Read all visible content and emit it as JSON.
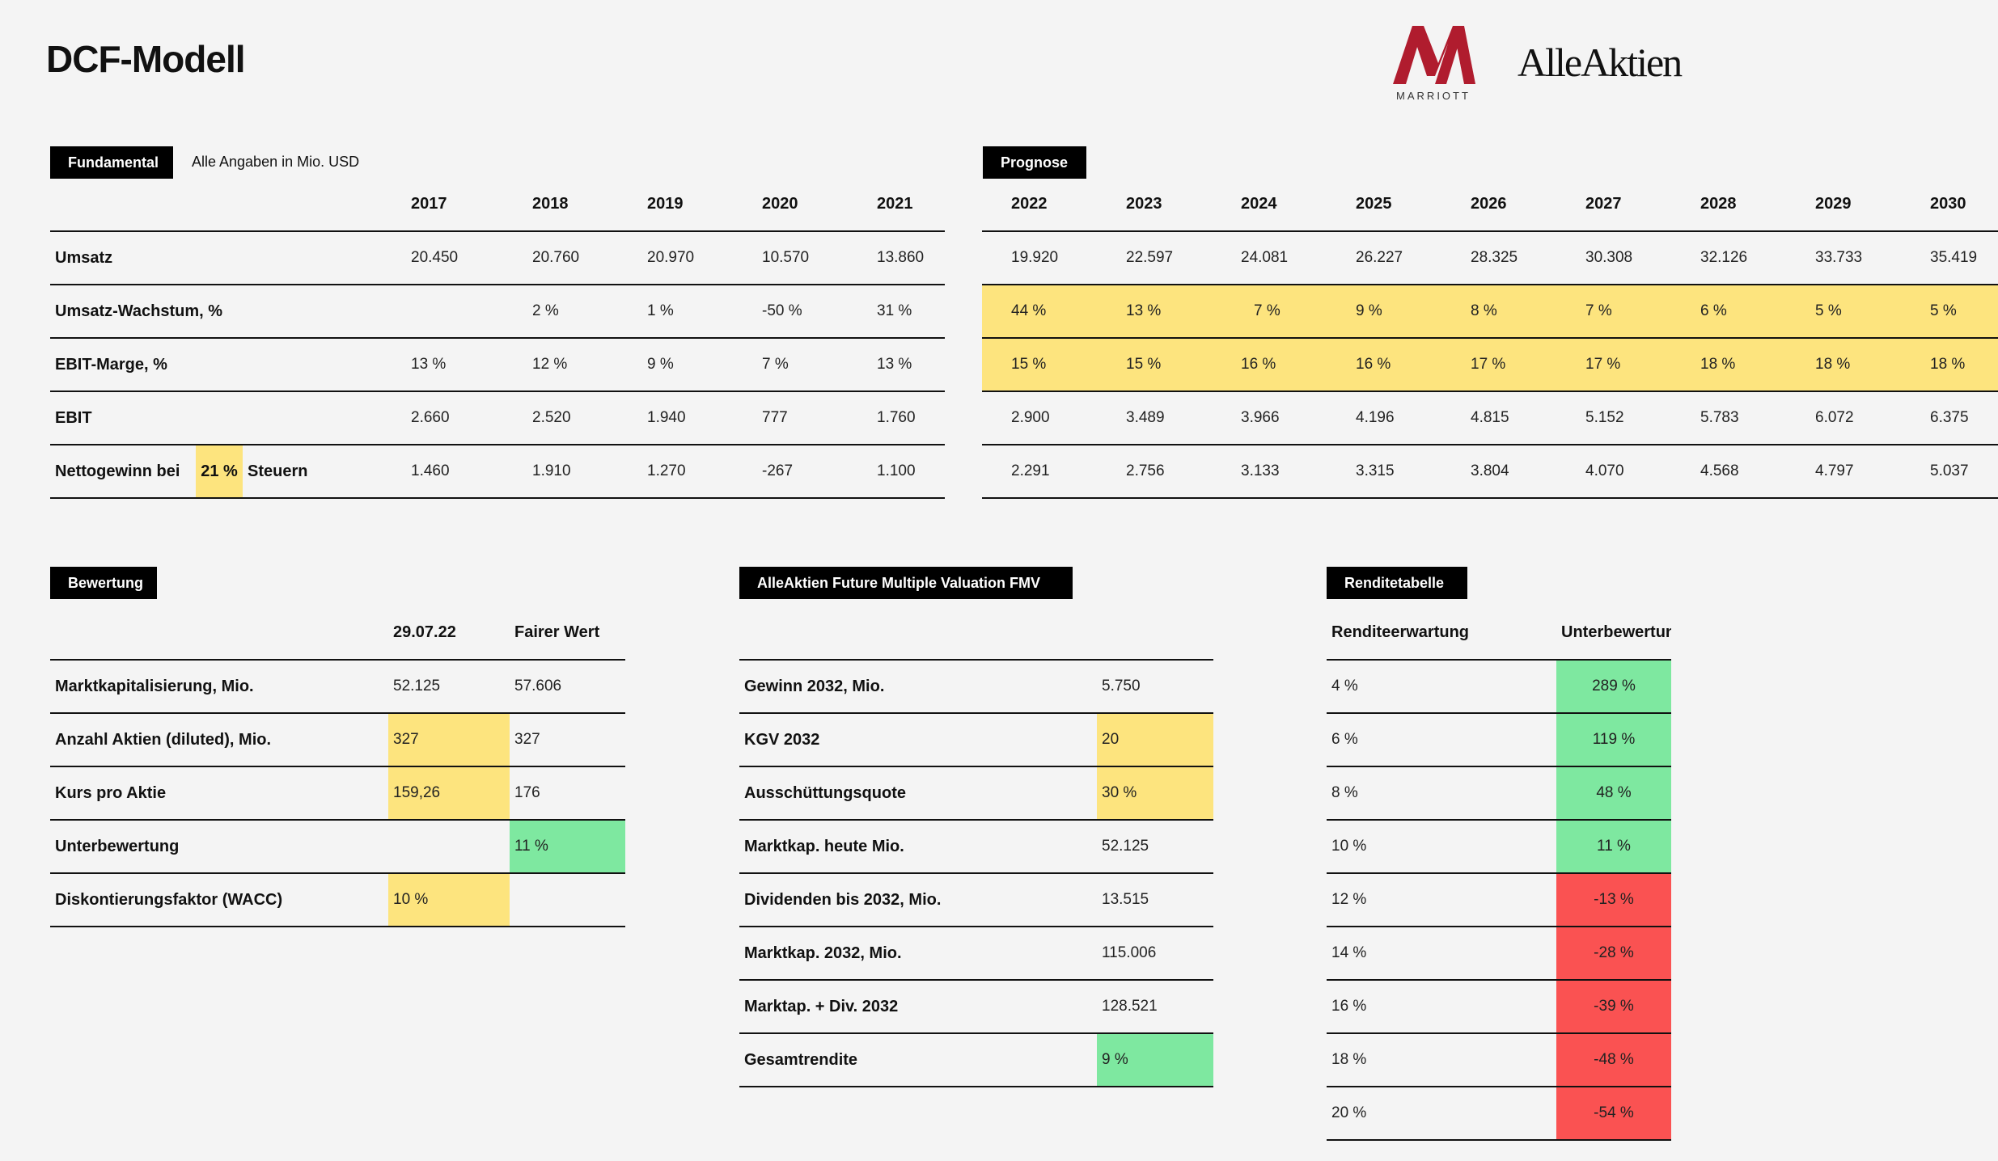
{
  "page": {
    "title": "DCF-Modell",
    "logo_marriott": "MARRIOTT",
    "logo_alleaktien": "AlleAktien"
  },
  "fundamental": {
    "tag": "Fundamental",
    "note": "Alle Angaben in Mio. USD",
    "years": [
      "2017",
      "2018",
      "2019",
      "2020",
      "2021"
    ],
    "rows": [
      {
        "label": "Umsatz",
        "values": [
          "20.450",
          "20.760",
          "20.970",
          "10.570",
          "13.860"
        ]
      },
      {
        "label": "Umsatz-Wachstum, %",
        "values": [
          "",
          "2 %",
          "1 %",
          "-50 %",
          "31 %"
        ]
      },
      {
        "label": "EBIT-Marge, %",
        "values": [
          "13 %",
          "12 %",
          "9 %",
          "7 %",
          "13 %"
        ]
      },
      {
        "label": "EBIT",
        "values": [
          "2.660",
          "2.520",
          "1.940",
          "777",
          "1.760"
        ]
      },
      {
        "label": "Nettogewinn bei",
        "values": [
          "1.460",
          "1.910",
          "1.270",
          "-267",
          "1.100"
        ]
      }
    ],
    "tax_rate": "21 %",
    "tax_suffix": "Steuern"
  },
  "prognose": {
    "tag": "Prognose",
    "years": [
      "2022",
      "2023",
      "2024",
      "2025",
      "2026",
      "2027",
      "2028",
      "2029",
      "2030"
    ],
    "rows": [
      [
        "19.920",
        "22.597",
        "24.081",
        "26.227",
        "28.325",
        "30.308",
        "32.126",
        "33.733",
        "35.419"
      ],
      [
        "44 %",
        "13 %",
        "7 %",
        "9 %",
        "8 %",
        "7 %",
        "6 %",
        "5 %",
        "5 %"
      ],
      [
        "15 %",
        "15 %",
        "16 %",
        "16 %",
        "17 %",
        "17 %",
        "18 %",
        "18 %",
        "18 %"
      ],
      [
        "2.900",
        "3.489",
        "3.966",
        "4.196",
        "4.815",
        "5.152",
        "5.783",
        "6.072",
        "6.375"
      ],
      [
        "2.291",
        "2.756",
        "3.133",
        "3.315",
        "3.804",
        "4.070",
        "4.568",
        "4.797",
        "5.037"
      ]
    ]
  },
  "bewertung": {
    "tag": "Bewertung",
    "col1": "29.07.22",
    "col2": "Fairer Wert",
    "rows": [
      {
        "label": "Marktkapitalisierung, Mio.",
        "v1": "52.125",
        "v2": "57.606"
      },
      {
        "label": "Anzahl Aktien (diluted), Mio.",
        "v1": "327",
        "v2": "327"
      },
      {
        "label": "Kurs pro Aktie",
        "v1": "159,26",
        "v2": "176"
      },
      {
        "label": "Unterbewertung",
        "v1": "",
        "v2": "11 %"
      },
      {
        "label": "Diskontierungsfaktor (WACC)",
        "v1": "10 %",
        "v2": ""
      }
    ]
  },
  "fmv": {
    "tag": "AlleAktien Future Multiple Valuation FMV",
    "rows": [
      {
        "label": "Gewinn 2032, Mio.",
        "value": "5.750"
      },
      {
        "label": "KGV 2032",
        "value": "20"
      },
      {
        "label": "Ausschüttungsquote",
        "value": "30 %"
      },
      {
        "label": "Marktkap. heute Mio.",
        "value": "52.125"
      },
      {
        "label": "Dividenden bis 2032, Mio.",
        "value": "13.515"
      },
      {
        "label": "Marktkap. 2032, Mio.",
        "value": "115.006"
      },
      {
        "label": "Marktap. + Div. 2032",
        "value": "128.521"
      },
      {
        "label": "Gesamtrendite",
        "value": "9 %"
      }
    ]
  },
  "rendite": {
    "tag": "Renditetabelle",
    "col1": "Renditeerwartung",
    "col2": "Unterbewertung",
    "rows": [
      {
        "r": "4 %",
        "u": "289 %"
      },
      {
        "r": "6 %",
        "u": "119 %"
      },
      {
        "r": "8 %",
        "u": "48 %"
      },
      {
        "r": "10 %",
        "u": "11 %"
      },
      {
        "r": "12 %",
        "u": "-13 %"
      },
      {
        "r": "14 %",
        "u": "-28 %"
      },
      {
        "r": "16 %",
        "u": "-39 %"
      },
      {
        "r": "18 %",
        "u": "-48 %"
      },
      {
        "r": "20 %",
        "u": "-54 %"
      }
    ]
  },
  "colors": {
    "highlight_yellow": "#fde47e",
    "positive_green": "#7ee8a0",
    "negative_red": "#fa5252"
  }
}
